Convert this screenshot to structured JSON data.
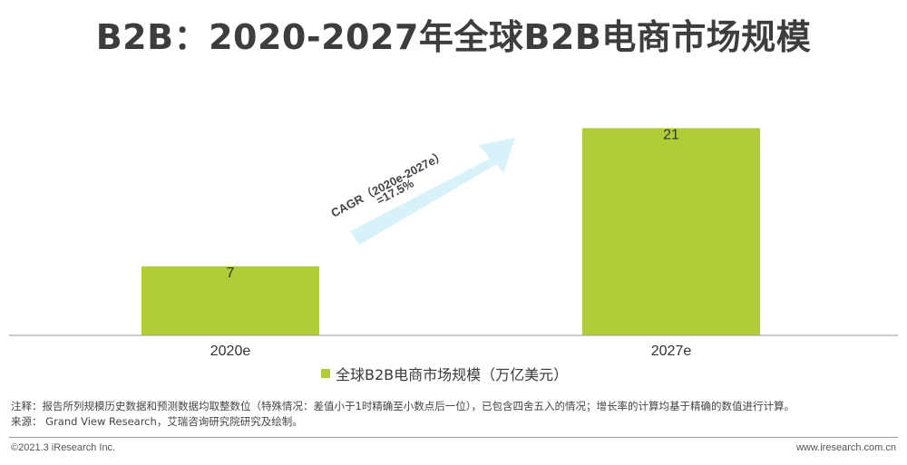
{
  "page": {
    "title": "B2B：2020-2027年全球B2B电商市场规模",
    "note": "注释：报告所列规模历史数据和预测数据均取整数位（特殊情况：差值小于1时精确至小数点后一位），已包含四舍五入的情况；增长率的计算均基于精确的数值进行计算。",
    "source": "来源： Grand View Research，艾瑞咨询研究院研究及绘制。",
    "copyright": "©2021.3 iResearch Inc.",
    "website": "www.iresearch.com.cn"
  },
  "chart_data": {
    "type": "bar",
    "categories": [
      "2020e",
      "2027e"
    ],
    "series": [
      {
        "name": "全球B2B电商市场规模（万亿美元）",
        "values": [
          7,
          21
        ],
        "color": "#b0cd38"
      }
    ],
    "data_labels": [
      "7",
      "21"
    ],
    "ylim": [
      0,
      22.5
    ],
    "annotation": {
      "line1": "CAGR（2020e-2027e）",
      "line2": "=17.5%"
    },
    "legend_position": "bottom",
    "grid": false
  },
  "colors": {
    "bar": "#b0cd38",
    "arrow": "#d8f2fa",
    "axis": "#9a9a9a"
  }
}
